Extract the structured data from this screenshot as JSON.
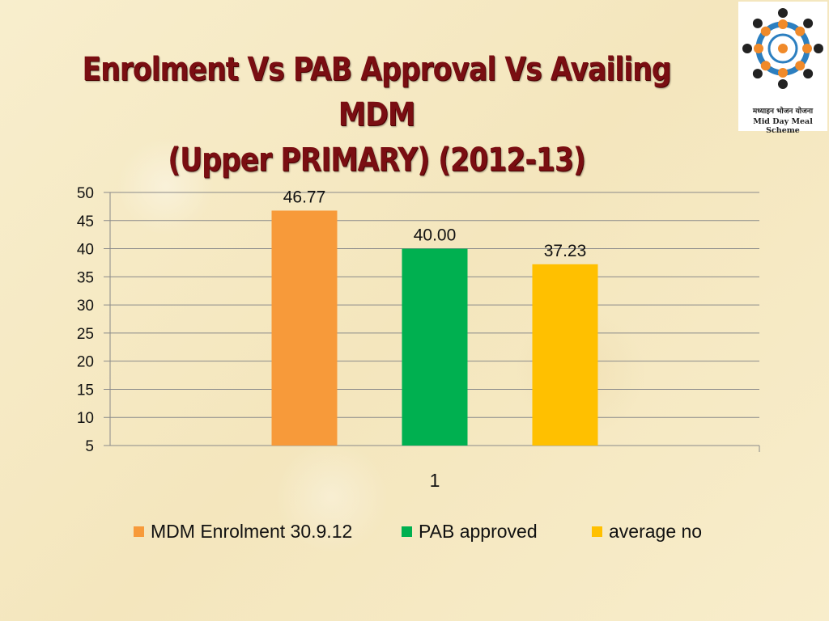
{
  "title": {
    "line1": "Enrolment Vs PAB Approval Vs Availing MDM",
    "line2": "(Upper PRIMARY) (2012-13)"
  },
  "logo": {
    "text_hi": "मध्याहन भोजन योजना",
    "text_en": "Mid Day Meal Scheme"
  },
  "colors": {
    "accent_title": "#7a0e12",
    "gridline": "#8a8a8a"
  },
  "chart_data": {
    "type": "bar",
    "categories": [
      "1"
    ],
    "series": [
      {
        "name": "MDM Enrolment 30.9.12",
        "values": [
          46.77
        ],
        "label": "46.77",
        "color": "#f79a3a"
      },
      {
        "name": "PAB approved",
        "values": [
          40.0
        ],
        "label": "40.00",
        "color": "#00b050"
      },
      {
        "name": "average no",
        "values": [
          37.23
        ],
        "label": "37.23",
        "color": "#ffc000"
      }
    ],
    "ylim": [
      5,
      50
    ],
    "yticks": [
      5,
      10,
      15,
      20,
      25,
      30,
      35,
      40,
      45,
      50
    ],
    "grid": true,
    "legend": "bottom",
    "title": "",
    "xlabel": "",
    "ylabel": ""
  }
}
